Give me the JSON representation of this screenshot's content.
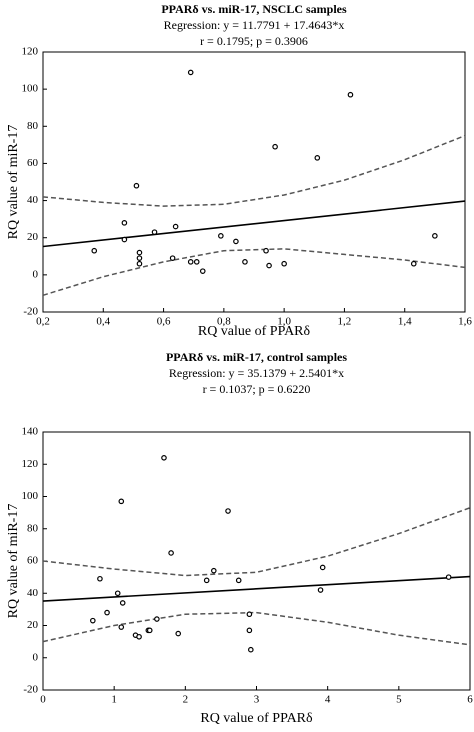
{
  "chart_data": [
    {
      "type": "scatter",
      "title": "PPARδ vs. miR-17, NSCLC samples",
      "subtitle": [
        "Regression: y = 11.7791 + 17.4643*x",
        "r = 0.1795; p = 0.3906"
      ],
      "xlabel": "RQ value of PPARδ",
      "ylabel": "RQ value of miR-17",
      "xlim": [
        0.2,
        1.6
      ],
      "xticks": [
        {
          "value": 0.2,
          "label": "0,2"
        },
        {
          "value": 0.4,
          "label": "0,4"
        },
        {
          "value": 0.6,
          "label": "0,6"
        },
        {
          "value": 0.8,
          "label": "0,8"
        },
        {
          "value": 1.0,
          "label": "1,0"
        },
        {
          "value": 1.2,
          "label": "1,2"
        },
        {
          "value": 1.4,
          "label": "1,4"
        },
        {
          "value": 1.6,
          "label": "1,6"
        }
      ],
      "ylim": [
        -20,
        120
      ],
      "yticks": [
        -20,
        0,
        20,
        40,
        60,
        80,
        100,
        120
      ],
      "x": [
        0.37,
        0.47,
        0.47,
        0.51,
        0.52,
        0.52,
        0.52,
        0.57,
        0.63,
        0.64,
        0.69,
        0.69,
        0.71,
        0.73,
        0.79,
        0.84,
        0.87,
        0.94,
        0.95,
        0.97,
        1.0,
        1.11,
        1.22,
        1.43,
        1.5
      ],
      "values": [
        13,
        28,
        19,
        48,
        12,
        9,
        6,
        23,
        9,
        26,
        109,
        7,
        7,
        2,
        21,
        18,
        7,
        13,
        5,
        69,
        6,
        63,
        97,
        6,
        21
      ],
      "regression": {
        "intercept": 11.7791,
        "slope": 17.4643
      },
      "confidence_band": {
        "x": [
          0.2,
          0.4,
          0.6,
          0.8,
          1.0,
          1.2,
          1.4,
          1.6
        ],
        "upper": [
          42,
          39,
          37,
          38,
          43,
          51,
          62,
          75
        ],
        "lower": [
          -11,
          -1,
          7,
          13,
          14,
          11,
          8,
          4
        ]
      }
    },
    {
      "type": "scatter",
      "title": "PPARδ vs. miR-17, control samples",
      "subtitle": [
        "Regression: y = 35.1379 + 2.5401*x",
        "r = 0.1037; p = 0.6220"
      ],
      "xlabel": "RQ value of PPARδ",
      "ylabel": "RQ value of miR-17",
      "xlim": [
        0,
        6
      ],
      "xticks": [
        0,
        1,
        2,
        3,
        4,
        5,
        6
      ],
      "ylim": [
        -20,
        140
      ],
      "yticks": [
        -20,
        0,
        20,
        40,
        60,
        80,
        100,
        120,
        140
      ],
      "x": [
        0.7,
        0.8,
        0.9,
        1.05,
        1.1,
        1.1,
        1.12,
        1.3,
        1.35,
        1.48,
        1.5,
        1.6,
        1.7,
        1.8,
        1.9,
        2.3,
        2.4,
        2.6,
        2.75,
        2.9,
        2.9,
        2.92,
        3.9,
        3.93,
        5.7
      ],
      "values": [
        23,
        49,
        28,
        40,
        19,
        97,
        34,
        14,
        13,
        17,
        17,
        24,
        124,
        65,
        15,
        48,
        54,
        91,
        48,
        27,
        17,
        5,
        42,
        56,
        50
      ],
      "regression": {
        "intercept": 35.1379,
        "slope": 2.5401
      },
      "confidence_band": {
        "x": [
          0,
          1,
          2,
          3,
          4,
          5,
          6
        ],
        "upper": [
          60,
          55,
          51,
          53,
          63,
          77,
          93
        ],
        "lower": [
          10,
          20,
          27,
          28,
          22,
          14,
          8
        ]
      }
    }
  ]
}
